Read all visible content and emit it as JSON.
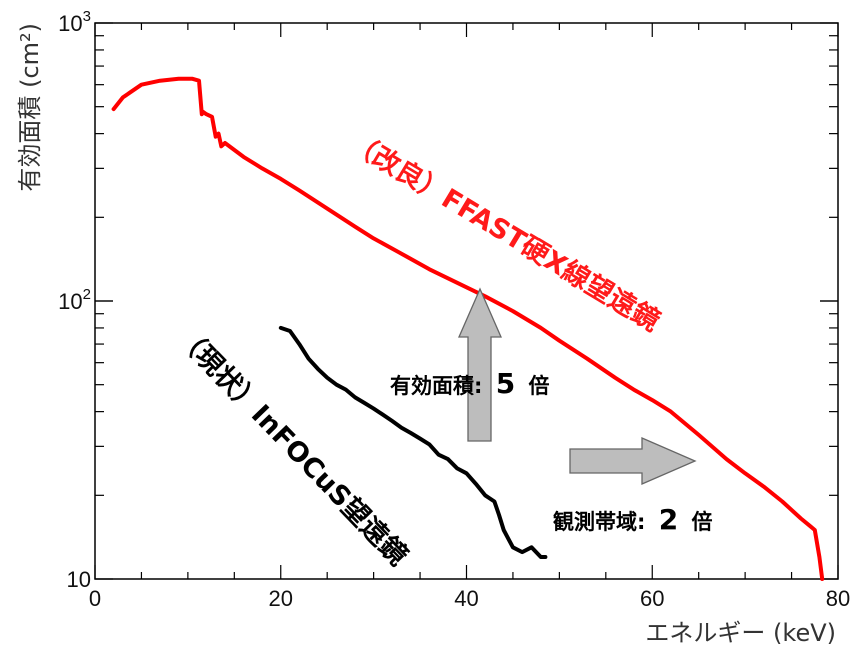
{
  "chart_data": {
    "type": "line",
    "xlabel": "エネルギー (keV)",
    "ylabel": "有効面積 (cm²)",
    "xlim": [
      0,
      80
    ],
    "ylim": [
      10,
      1000
    ],
    "y_scale": "log",
    "grid": false,
    "x_ticks": [
      {
        "value": 0,
        "label": "0"
      },
      {
        "value": 20,
        "label": "20"
      },
      {
        "value": 40,
        "label": "40"
      },
      {
        "value": 60,
        "label": "60"
      },
      {
        "value": 80,
        "label": "80"
      }
    ],
    "y_ticks": [
      {
        "value": 10,
        "base": "10",
        "exp": ""
      },
      {
        "value": 100,
        "base": "10",
        "exp": "2"
      },
      {
        "value": 1000,
        "base": "10",
        "exp": "3"
      }
    ],
    "series": [
      {
        "name": "（改良）FFAST硬X線望遠鏡",
        "color": "#ff0000",
        "x": [
          2,
          3,
          5,
          7,
          9,
          10.5,
          11.2,
          11.5,
          11.6,
          12,
          12.6,
          13,
          13.3,
          13.6,
          14,
          16,
          18,
          20,
          22,
          25,
          28,
          30,
          33,
          36,
          40,
          42,
          45,
          48,
          50,
          53,
          56,
          58,
          60,
          62,
          65,
          68,
          70,
          72,
          74,
          76,
          77,
          77.5,
          78,
          78.3
        ],
        "y": [
          490,
          540,
          600,
          620,
          630,
          630,
          620,
          470,
          480,
          470,
          460,
          390,
          400,
          360,
          370,
          330,
          300,
          275,
          250,
          215,
          185,
          168,
          148,
          130,
          112,
          104,
          92,
          80,
          72,
          62,
          53,
          48,
          44,
          40,
          33,
          27,
          24,
          21.5,
          19,
          16.5,
          15.5,
          15,
          12,
          10
        ]
      },
      {
        "name": "（現状）InFOCuS望遠鏡",
        "color": "#000000",
        "x": [
          20,
          21,
          22,
          23,
          24,
          25,
          26,
          27,
          28,
          29,
          30,
          31,
          32,
          33,
          34,
          35,
          36,
          37,
          38,
          39,
          40,
          41,
          42,
          42.5,
          43,
          43.5,
          44,
          45,
          46,
          47,
          48,
          48.5
        ],
        "y": [
          80,
          78,
          70,
          62,
          57,
          53,
          50,
          48,
          45,
          43,
          41,
          39,
          37,
          35,
          33.5,
          32,
          30.5,
          28,
          27,
          25,
          24,
          22,
          20,
          19.5,
          19,
          17,
          15,
          13,
          12.5,
          13,
          12,
          12
        ]
      }
    ],
    "annotations": {
      "ffast_label": "（改良）FFAST硬X線望遠鏡",
      "infocus_label": "（現状）InFOCuS望遠鏡",
      "area_label": "有効面積:",
      "area_factor": "5",
      "area_unit": "倍",
      "band_label": "観測帯域:",
      "band_factor": "2",
      "band_unit": "倍"
    }
  }
}
